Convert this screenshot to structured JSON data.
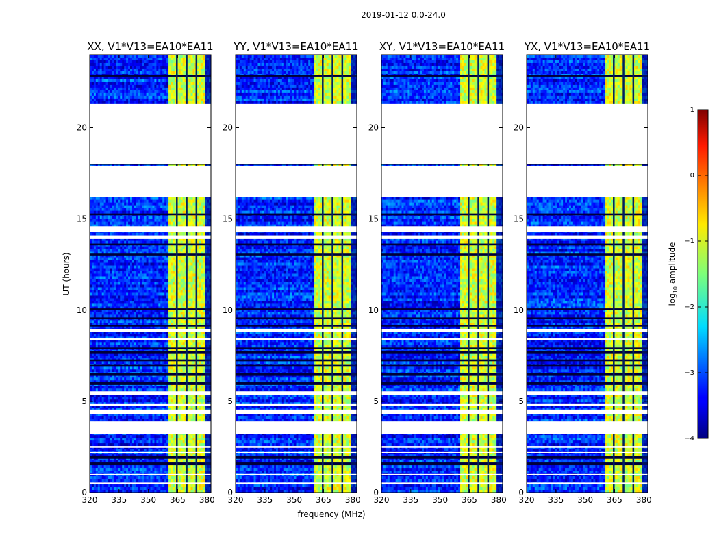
{
  "chart_data": {
    "type": "heatmap",
    "title": "2019-01-12 0.0-24.0",
    "xlabel": "frequency (MHz)",
    "ylabel": "UT (hours)",
    "xlim": [
      320,
      382
    ],
    "ylim": [
      0,
      24
    ],
    "xticks": [
      320,
      335,
      350,
      365,
      380
    ],
    "yticks": [
      0,
      5,
      10,
      15,
      20
    ],
    "panels": [
      {
        "title": "XX, V1*V13=EA10*EA11",
        "seed": 11
      },
      {
        "title": "YY, V1*V13=EA10*EA11",
        "seed": 23
      },
      {
        "title": "XY, V1*V13=EA10*EA11",
        "seed": 37
      },
      {
        "title": "YX, V1*V13=EA10*EA11",
        "seed": 51
      }
    ],
    "colorbar": {
      "label": "log₁₀ amplitude",
      "label_main": "log",
      "label_sub": "10",
      "label_tail": " amplitude",
      "ticks": [
        1,
        0,
        -1,
        -2,
        -3,
        -4
      ],
      "vmin": -4,
      "vmax": 1,
      "colormap": "jet"
    },
    "bright_band_mhz": [
      360,
      379
    ],
    "band_dividers_mhz": [
      364.5,
      369.5,
      374.5
    ],
    "data_gaps_hours": [
      [
        18.0,
        21.3
      ],
      [
        16.2,
        17.9
      ],
      [
        14.3,
        14.6
      ],
      [
        13.9,
        14.1
      ],
      [
        8.8,
        8.95
      ],
      [
        8.35,
        8.45
      ],
      [
        5.35,
        5.55
      ],
      [
        4.75,
        4.85
      ],
      [
        4.3,
        4.55
      ],
      [
        3.2,
        3.9
      ],
      [
        2.45,
        2.55
      ],
      [
        2.15,
        2.22
      ],
      [
        0.95,
        1.02
      ],
      [
        0.45,
        0.55
      ]
    ],
    "flagged_rows_hours": [
      [
        1.5,
        1.65
      ],
      [
        1.85,
        2.0
      ],
      [
        5.9,
        6.05
      ],
      [
        6.4,
        6.55
      ],
      [
        6.9,
        7.0
      ],
      [
        7.2,
        7.3
      ],
      [
        7.6,
        7.75
      ],
      [
        7.85,
        7.95
      ],
      [
        9.1,
        9.2
      ],
      [
        9.5,
        9.6
      ],
      [
        10.0,
        10.1
      ],
      [
        13.0,
        13.1
      ],
      [
        13.55,
        13.65
      ],
      [
        15.2,
        15.3
      ],
      [
        22.8,
        22.9
      ]
    ],
    "grid": false
  },
  "colors": {
    "bright_low": -1.6,
    "bright_high": -0.6,
    "background_low": -3.9,
    "background_high": -2.6
  }
}
